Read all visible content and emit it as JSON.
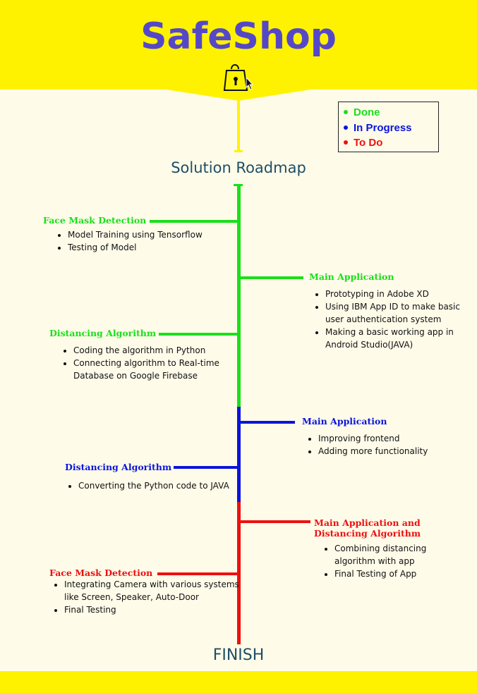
{
  "header": {
    "title": "SafeShop"
  },
  "legend": [
    {
      "label": "Done",
      "color": "#19e019"
    },
    {
      "label": "In Progress",
      "color": "#0a14dc"
    },
    {
      "label": "To Do",
      "color": "#ee1010"
    }
  ],
  "roadmap_title": "Solution Roadmap",
  "finish_label": "FINISH",
  "colors": {
    "header_yellow": "#fff200",
    "done": "#19e019",
    "in_progress": "#0a14dc",
    "todo": "#ee1010",
    "title": "#5548c8",
    "heading": "#1f4e66"
  },
  "sections": [
    {
      "id": "face-mask-detection-done",
      "title": "Face Mask Detection",
      "status": "done",
      "items": [
        "Model Training using Tensorflow",
        "Testing of Model"
      ]
    },
    {
      "id": "main-application-done",
      "title": "Main Application",
      "status": "done",
      "items": [
        "Prototyping in Adobe XD",
        "Using IBM App ID to make basic user authentication system",
        "Making a basic working app in Android Studio(JAVA)"
      ]
    },
    {
      "id": "distancing-algorithm-done",
      "title": "Distancing Algorithm",
      "status": "done",
      "items": [
        "Coding the algorithm in Python",
        "Connecting algorithm to Real-time Database on Google Firebase"
      ]
    },
    {
      "id": "main-application-in-progress",
      "title": "Main Application",
      "status": "in_progress",
      "items": [
        "Improving frontend",
        "Adding more functionality"
      ]
    },
    {
      "id": "distancing-algorithm-in-progress",
      "title": "Distancing Algorithm",
      "status": "in_progress",
      "items": [
        "Converting the Python code to JAVA"
      ]
    },
    {
      "id": "main-app-distancing-todo",
      "title": "Main Application and Distancing Algorithm",
      "status": "todo",
      "items": [
        "Combining distancing algorithm with app",
        "Final Testing of App"
      ]
    },
    {
      "id": "face-mask-detection-todo",
      "title": "Face Mask Detection",
      "status": "todo",
      "items": [
        "Integrating Camera with various systems like Screen, Speaker, Auto-Door",
        "Final Testing"
      ]
    }
  ]
}
